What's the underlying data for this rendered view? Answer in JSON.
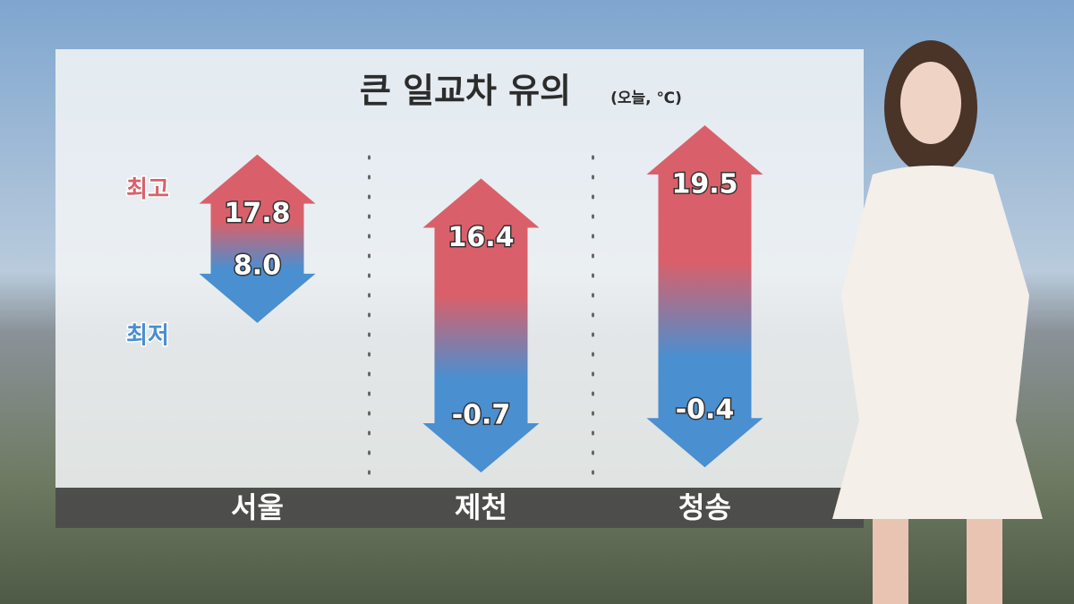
{
  "chart_data": {
    "type": "range",
    "title": "큰 일교차 유의",
    "subtitle": "(오늘, ℃)",
    "categories": [
      "서울",
      "제천",
      "청송"
    ],
    "series": [
      {
        "name": "최고",
        "color": "#d9606a",
        "values": [
          17.8,
          16.4,
          19.5
        ]
      },
      {
        "name": "최저",
        "color": "#4a8fd0",
        "values": [
          8.0,
          -0.7,
          -0.4
        ],
        "value_labels": [
          "8.0",
          "-0.7",
          "-0.4"
        ]
      }
    ]
  }
}
